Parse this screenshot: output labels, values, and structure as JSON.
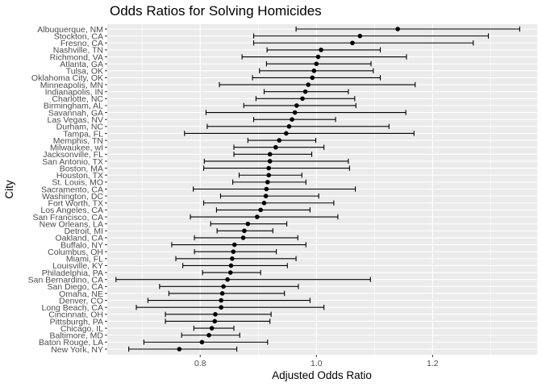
{
  "chart_data": {
    "type": "scatter",
    "subtype": "point-range",
    "title": "Odds Ratios for Solving Homicides",
    "xlabel": "Adjusted Odds Ratio",
    "ylabel": "City",
    "xlim": [
      0.64,
      1.38
    ],
    "x_ticks": [
      0.8,
      1.0,
      1.2
    ],
    "x_tick_labels": [
      "0.8",
      "1.0",
      "1.2"
    ],
    "grid": true,
    "background_color": "#ebebeb",
    "point_color": "#000000",
    "points": [
      {
        "city": "Albuquerque, NM",
        "or": 1.14,
        "lo": 0.965,
        "hi": 1.35
      },
      {
        "city": "Stockton, CA",
        "or": 1.075,
        "lo": 0.892,
        "hi": 1.296
      },
      {
        "city": "Fresno, CA",
        "or": 1.062,
        "lo": 0.892,
        "hi": 1.27
      },
      {
        "city": "Nashville, TN",
        "or": 1.008,
        "lo": 0.915,
        "hi": 1.11
      },
      {
        "city": "Richmond, VA",
        "or": 1.003,
        "lo": 0.872,
        "hi": 1.155
      },
      {
        "city": "Atlanta, GA",
        "or": 1.0,
        "lo": 0.914,
        "hi": 1.094
      },
      {
        "city": "Tulsa, OK",
        "or": 0.996,
        "lo": 0.902,
        "hi": 1.098
      },
      {
        "city": "Oklahoma City, OK",
        "or": 0.993,
        "lo": 0.89,
        "hi": 1.11
      },
      {
        "city": "Minneapolis, MN",
        "or": 0.986,
        "lo": 0.833,
        "hi": 1.17
      },
      {
        "city": "Indianapolis, IN",
        "or": 0.981,
        "lo": 0.91,
        "hi": 1.055
      },
      {
        "city": "Charlotte, NC",
        "or": 0.976,
        "lo": 0.896,
        "hi": 1.066
      },
      {
        "city": "Birmingham, AL",
        "or": 0.966,
        "lo": 0.875,
        "hi": 1.068
      },
      {
        "city": "Savannah, GA",
        "or": 0.963,
        "lo": 0.81,
        "hi": 1.154
      },
      {
        "city": "Las Vegas, NV",
        "or": 0.958,
        "lo": 0.892,
        "hi": 1.033
      },
      {
        "city": "Durham, NC",
        "or": 0.953,
        "lo": 0.812,
        "hi": 1.125
      },
      {
        "city": "Tampa, FL",
        "or": 0.948,
        "lo": 0.773,
        "hi": 1.168
      },
      {
        "city": "Memphis, TN",
        "or": 0.936,
        "lo": 0.882,
        "hi": 0.999
      },
      {
        "city": "Milwaukee, wI",
        "or": 0.93,
        "lo": 0.858,
        "hi": 1.013
      },
      {
        "city": "Jacksonville, FL",
        "or": 0.92,
        "lo": 0.858,
        "hi": 0.992
      },
      {
        "city": "San Antonio, TX",
        "or": 0.92,
        "lo": 0.807,
        "hi": 1.055
      },
      {
        "city": "Boston, MA",
        "or": 0.918,
        "lo": 0.806,
        "hi": 1.057
      },
      {
        "city": "Houston, TX",
        "or": 0.918,
        "lo": 0.867,
        "hi": 0.975
      },
      {
        "city": "St. Louis, MO",
        "or": 0.916,
        "lo": 0.856,
        "hi": 0.982
      },
      {
        "city": "Sacramento, CA",
        "or": 0.914,
        "lo": 0.788,
        "hi": 1.067
      },
      {
        "city": "Washington, DC",
        "or": 0.913,
        "lo": 0.835,
        "hi": 1.004
      },
      {
        "city": "Fort Worth, TX",
        "or": 0.91,
        "lo": 0.806,
        "hi": 1.03
      },
      {
        "city": "Los Angeles, CA",
        "or": 0.904,
        "lo": 0.828,
        "hi": 0.989
      },
      {
        "city": "San Francisco, CA",
        "or": 0.898,
        "lo": 0.783,
        "hi": 1.037
      },
      {
        "city": "New Orleans, LA",
        "or": 0.882,
        "lo": 0.818,
        "hi": 0.949
      },
      {
        "city": "Detroit, MI",
        "or": 0.876,
        "lo": 0.829,
        "hi": 0.925
      },
      {
        "city": "Oakland, CA",
        "or": 0.874,
        "lo": 0.79,
        "hi": 0.968
      },
      {
        "city": "Buffalo, NY",
        "or": 0.859,
        "lo": 0.751,
        "hi": 0.982
      },
      {
        "city": "Columbus, OH",
        "or": 0.857,
        "lo": 0.79,
        "hi": 0.931
      },
      {
        "city": "Miami, FL",
        "or": 0.855,
        "lo": 0.758,
        "hi": 0.965
      },
      {
        "city": "Louisville, KY",
        "or": 0.853,
        "lo": 0.77,
        "hi": 0.95
      },
      {
        "city": "Philadelphia, PA",
        "or": 0.852,
        "lo": 0.804,
        "hi": 0.904
      },
      {
        "city": "San Bernardino, CA",
        "or": 0.847,
        "lo": 0.655,
        "hi": 1.093
      },
      {
        "city": "San Diego, CA",
        "or": 0.84,
        "lo": 0.73,
        "hi": 0.969
      },
      {
        "city": "Omaha, NE",
        "or": 0.838,
        "lo": 0.746,
        "hi": 0.945
      },
      {
        "city": "Denver, CO",
        "or": 0.836,
        "lo": 0.71,
        "hi": 0.989
      },
      {
        "city": "Long Beach, CA",
        "or": 0.836,
        "lo": 0.69,
        "hi": 1.013
      },
      {
        "city": "Cincinnati, OH",
        "or": 0.826,
        "lo": 0.74,
        "hi": 0.922
      },
      {
        "city": "Pittsburgh, PA",
        "or": 0.825,
        "lo": 0.74,
        "hi": 0.92
      },
      {
        "city": "Chicago, IL",
        "or": 0.82,
        "lo": 0.789,
        "hi": 0.858
      },
      {
        "city": "Baltimore, MD",
        "or": 0.815,
        "lo": 0.768,
        "hi": 0.868
      },
      {
        "city": "Baton Rouge, LA",
        "or": 0.803,
        "lo": 0.703,
        "hi": 0.916
      },
      {
        "city": "New York, NY",
        "or": 0.764,
        "lo": 0.677,
        "hi": 0.863
      }
    ]
  }
}
